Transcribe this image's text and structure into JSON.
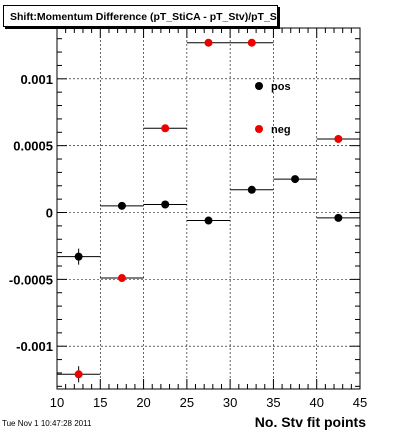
{
  "title": "Shift:Momentum Difference (pT_StiCA - pT_Stv)/pT_Stv Pr",
  "timestamp": "Tue Nov  1 10:47:28 2011",
  "chart_data": {
    "type": "scatter",
    "xlabel": "No. Stv fit points",
    "ylabel": "",
    "xlim": [
      10,
      45
    ],
    "ylim": [
      -0.00132,
      0.00138
    ],
    "x_ticks": [
      10,
      15,
      20,
      25,
      30,
      35,
      40,
      45
    ],
    "y_ticks": [
      {
        "value": 0.001,
        "label": "0.001"
      },
      {
        "value": 0.0005,
        "label": "0.0005"
      },
      {
        "value": 0,
        "label": "0"
      },
      {
        "value": -0.0005,
        "label": "-0.0005"
      },
      {
        "value": -0.001,
        "label": "-0.001"
      }
    ],
    "grid": true,
    "legend_position": "top-right",
    "series": [
      {
        "name": "pos",
        "color": "#000000",
        "points": [
          {
            "x": 12.5,
            "y": -0.00033,
            "xerr": 2.5,
            "yerr": 6e-05
          },
          {
            "x": 17.5,
            "y": 5e-05,
            "xerr": 2.5,
            "yerr": 2e-05
          },
          {
            "x": 22.5,
            "y": 6e-05,
            "xerr": 2.5,
            "yerr": 2e-05
          },
          {
            "x": 27.5,
            "y": -6e-05,
            "xerr": 2.5,
            "yerr": 2e-05
          },
          {
            "x": 32.5,
            "y": 0.00017,
            "xerr": 2.5,
            "yerr": 2e-05
          },
          {
            "x": 37.5,
            "y": 0.00025,
            "xerr": 2.5,
            "yerr": 2e-05
          },
          {
            "x": 42.5,
            "y": -4e-05,
            "xerr": 2.5,
            "yerr": 2e-05
          }
        ]
      },
      {
        "name": "neg",
        "color": "#ee0000",
        "points": [
          {
            "x": 12.5,
            "y": -0.00121,
            "xerr": 2.5,
            "yerr": 6e-05
          },
          {
            "x": 17.5,
            "y": -0.00049,
            "xerr": 2.5,
            "yerr": 2e-05
          },
          {
            "x": 22.5,
            "y": 0.00063,
            "xerr": 2.5,
            "yerr": 2e-05
          },
          {
            "x": 27.5,
            "y": 0.00127,
            "xerr": 2.5,
            "yerr": 2e-05
          },
          {
            "x": 32.5,
            "y": 0.00127,
            "xerr": 2.5,
            "yerr": 2e-05
          },
          {
            "x": 42.5,
            "y": 0.00055,
            "xerr": 2.5,
            "yerr": 3e-05
          }
        ]
      }
    ]
  }
}
